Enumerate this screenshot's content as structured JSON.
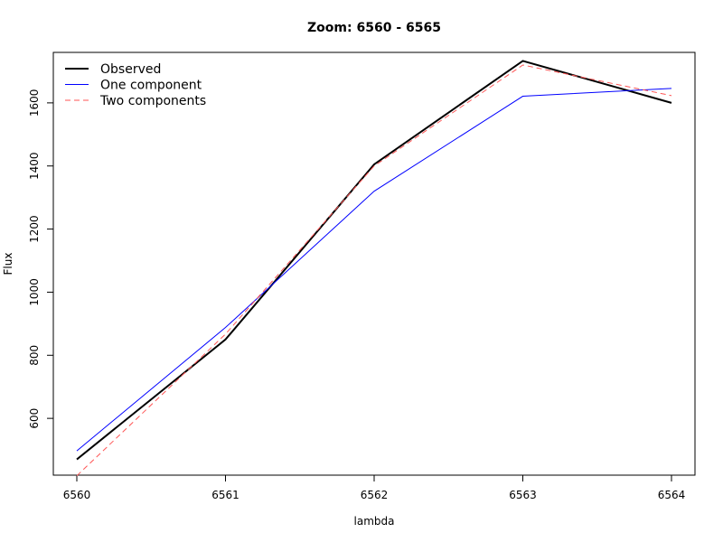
{
  "chart_data": {
    "type": "line",
    "title": "Zoom: 6560 - 6565",
    "xlabel": "lambda",
    "ylabel": "Flux",
    "xlim": [
      6560,
      6564
    ],
    "ylim": [
      420,
      1760
    ],
    "xticks": [
      "6560",
      "6561",
      "6562",
      "6563",
      "6564"
    ],
    "yticks": [
      "600",
      "800",
      "1000",
      "1200",
      "1400",
      "1600"
    ],
    "x": [
      6560,
      6561,
      6562,
      6563,
      6564
    ],
    "series": [
      {
        "name": "Observed",
        "values": [
          470,
          850,
          1405,
          1733,
          1600
        ],
        "color": "#000000",
        "dash": "solid",
        "width": 2
      },
      {
        "name": "One component",
        "values": [
          497,
          888,
          1320,
          1621,
          1646
        ],
        "color": "#0000ff",
        "dash": "solid",
        "width": 1
      },
      {
        "name": "Two components",
        "values": [
          418,
          867,
          1400,
          1720,
          1623
        ],
        "color": "#ff5555",
        "dash": "dashed",
        "width": 1
      }
    ],
    "grid": false,
    "legend_position": "top-left"
  }
}
